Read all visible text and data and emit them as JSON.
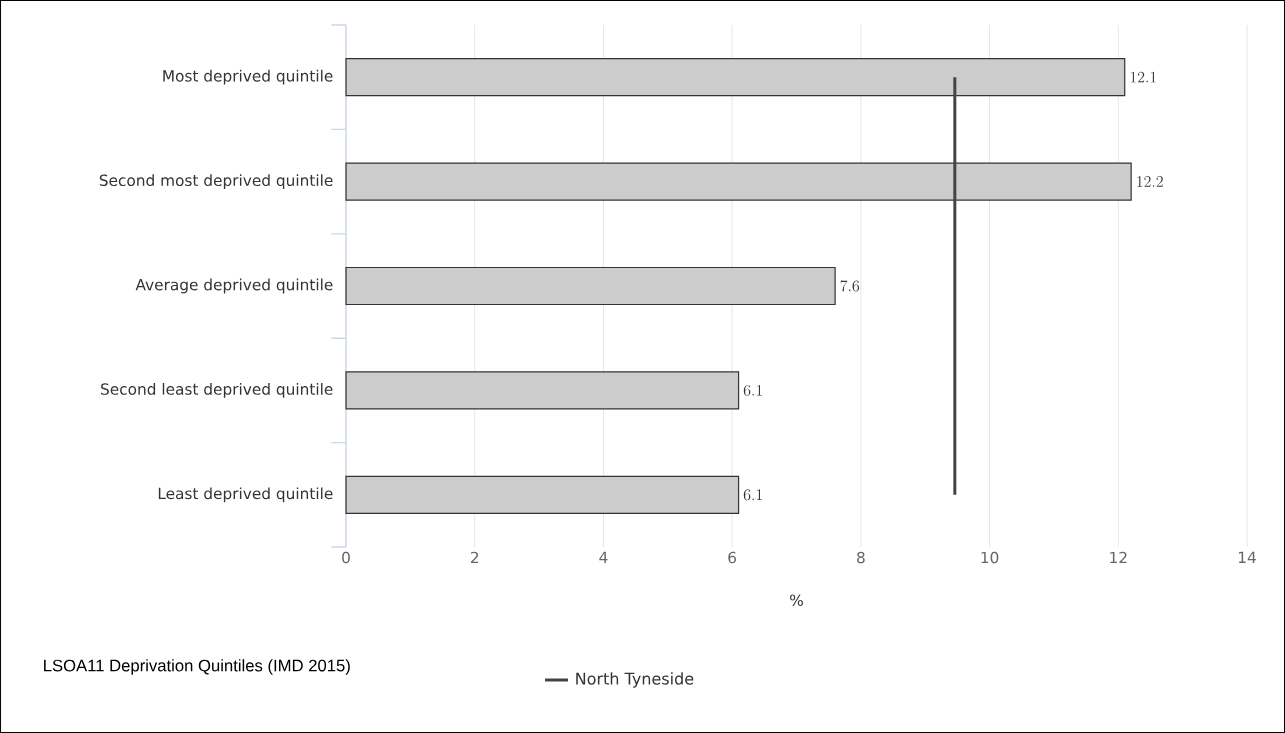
{
  "chart_data": {
    "type": "bar",
    "orientation": "horizontal",
    "categories": [
      "Most deprived quintile",
      "Second most deprived quintile",
      "Average deprived quintile",
      "Second least deprived quintile",
      "Least deprived quintile"
    ],
    "values": [
      12.1,
      12.2,
      7.6,
      6.1,
      6.1
    ],
    "color": "#cccccc",
    "data_labels": true,
    "xlabel": "%",
    "xlim": [
      0,
      14
    ],
    "xticks": [
      0,
      2,
      4,
      6,
      8,
      10,
      12,
      14
    ],
    "grid": "x",
    "ref_lines": [
      {
        "axis": "x",
        "value": 9.46,
        "label": "North Tyneside",
        "color": "#444444"
      }
    ],
    "legend": "bottom",
    "annotations": [
      "LSOA11 Deprivation Quintiles (IMD 2015)"
    ]
  }
}
